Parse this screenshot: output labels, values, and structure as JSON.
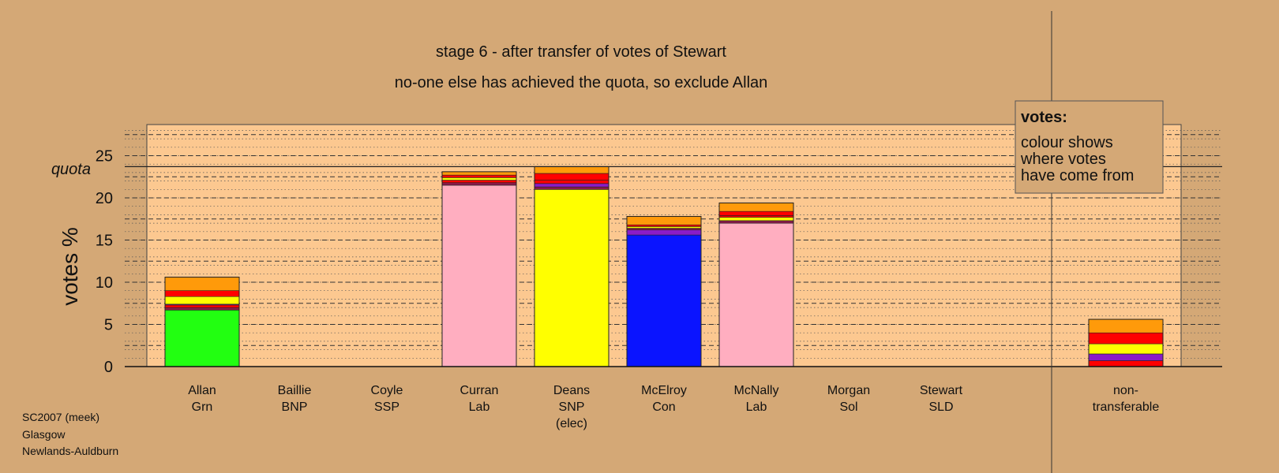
{
  "chart_data": {
    "type": "bar",
    "stacked": true,
    "title": "stage 6 - after transfer of votes of Stewart",
    "subtitle": "no-one else has achieved the quota, so exclude Allan",
    "ylabel": "votes %",
    "ylim": [
      0,
      28
    ],
    "yticks": [
      "0",
      "5",
      "10",
      "15",
      "20",
      "25"
    ],
    "quota": {
      "label": "quota",
      "value": 23.7
    },
    "legend": {
      "title": "votes:",
      "lines": [
        "colour shows",
        "where votes",
        "have come from"
      ],
      "placement": "top-right"
    },
    "categories": [
      {
        "name": "Allan",
        "party": "Grn",
        "note": ""
      },
      {
        "name": "Baillie",
        "party": "BNP",
        "note": ""
      },
      {
        "name": "Coyle",
        "party": "SSP",
        "note": ""
      },
      {
        "name": "Curran",
        "party": "Lab",
        "note": ""
      },
      {
        "name": "Deans",
        "party": "SNP",
        "note": "(elec)"
      },
      {
        "name": "McElroy",
        "party": "Con",
        "note": ""
      },
      {
        "name": "McNally",
        "party": "Lab",
        "note": ""
      },
      {
        "name": "Morgan",
        "party": "Sol",
        "note": ""
      },
      {
        "name": "Stewart",
        "party": "SLD",
        "note": ""
      }
    ],
    "nontransferable": {
      "line1": "non-",
      "line2": "transferable"
    },
    "segment_colors": {
      "first_Grn": "#22ff11",
      "first_Lab": "#ffaec0",
      "first_SNP": "#ffff00",
      "first_Con": "#0a14ff",
      "BNP": "#8b1a4a",
      "SSP": "#ff0000",
      "Sol": "#8a1cc8",
      "SLD": "#ff9a0a",
      "SNP": "#ffff00",
      "Lab": "#ffaec0",
      "Con": "#0a14ff",
      "Grn": "#22ff11"
    },
    "bars": [
      {
        "category": "Allan",
        "segments": [
          {
            "source": "first_Grn",
            "value": 6.7
          },
          {
            "source": "BNP",
            "value": 0.3
          },
          {
            "source": "SSP",
            "value": 0.3
          },
          {
            "source": "Sol",
            "value": 0.1
          },
          {
            "source": "SNP",
            "value": 0.9
          },
          {
            "source": "SSP",
            "value": 0.7
          },
          {
            "source": "SLD",
            "value": 1.6
          }
        ]
      },
      {
        "category": "Baillie",
        "segments": []
      },
      {
        "category": "Coyle",
        "segments": []
      },
      {
        "category": "Curran",
        "segments": [
          {
            "source": "first_Lab",
            "value": 21.5
          },
          {
            "source": "BNP",
            "value": 0.3
          },
          {
            "source": "SSP",
            "value": 0.3
          },
          {
            "source": "SNP",
            "value": 0.3
          },
          {
            "source": "SSP",
            "value": 0.3
          },
          {
            "source": "SLD",
            "value": 0.4
          }
        ]
      },
      {
        "category": "Deans",
        "segments": [
          {
            "source": "first_SNP",
            "value": 21.0
          },
          {
            "source": "BNP",
            "value": 0.3
          },
          {
            "source": "Sol",
            "value": 0.4
          },
          {
            "source": "SSP",
            "value": 0.4
          },
          {
            "source": "SSP",
            "value": 0.8
          },
          {
            "source": "SLD",
            "value": 0.8
          }
        ]
      },
      {
        "category": "McElroy",
        "segments": [
          {
            "source": "first_Con",
            "value": 15.6
          },
          {
            "source": "Sol",
            "value": 0.6
          },
          {
            "source": "BNP",
            "value": 0.2
          },
          {
            "source": "SNP",
            "value": 0.2
          },
          {
            "source": "SSP",
            "value": 0.2
          },
          {
            "source": "SLD",
            "value": 1.0
          }
        ]
      },
      {
        "category": "McNally",
        "segments": [
          {
            "source": "first_Lab",
            "value": 17.0
          },
          {
            "source": "BNP",
            "value": 0.3
          },
          {
            "source": "SNP",
            "value": 0.4
          },
          {
            "source": "SSP",
            "value": 0.2
          },
          {
            "source": "SSP",
            "value": 0.5
          },
          {
            "source": "SLD",
            "value": 1.0
          }
        ]
      },
      {
        "category": "Morgan",
        "segments": []
      },
      {
        "category": "Stewart",
        "segments": []
      },
      {
        "category": "non-transferable",
        "segments": [
          {
            "source": "SSP",
            "value": 0.7
          },
          {
            "source": "Sol",
            "value": 0.8
          },
          {
            "source": "SNP",
            "value": 1.2
          },
          {
            "source": "SSP",
            "value": 1.3
          },
          {
            "source": "SLD",
            "value": 1.6
          }
        ]
      }
    ]
  },
  "footer": {
    "line1": "SC2007 (meek)",
    "line2": "Glasgow",
    "line3": "Newlands-Auldburn"
  }
}
